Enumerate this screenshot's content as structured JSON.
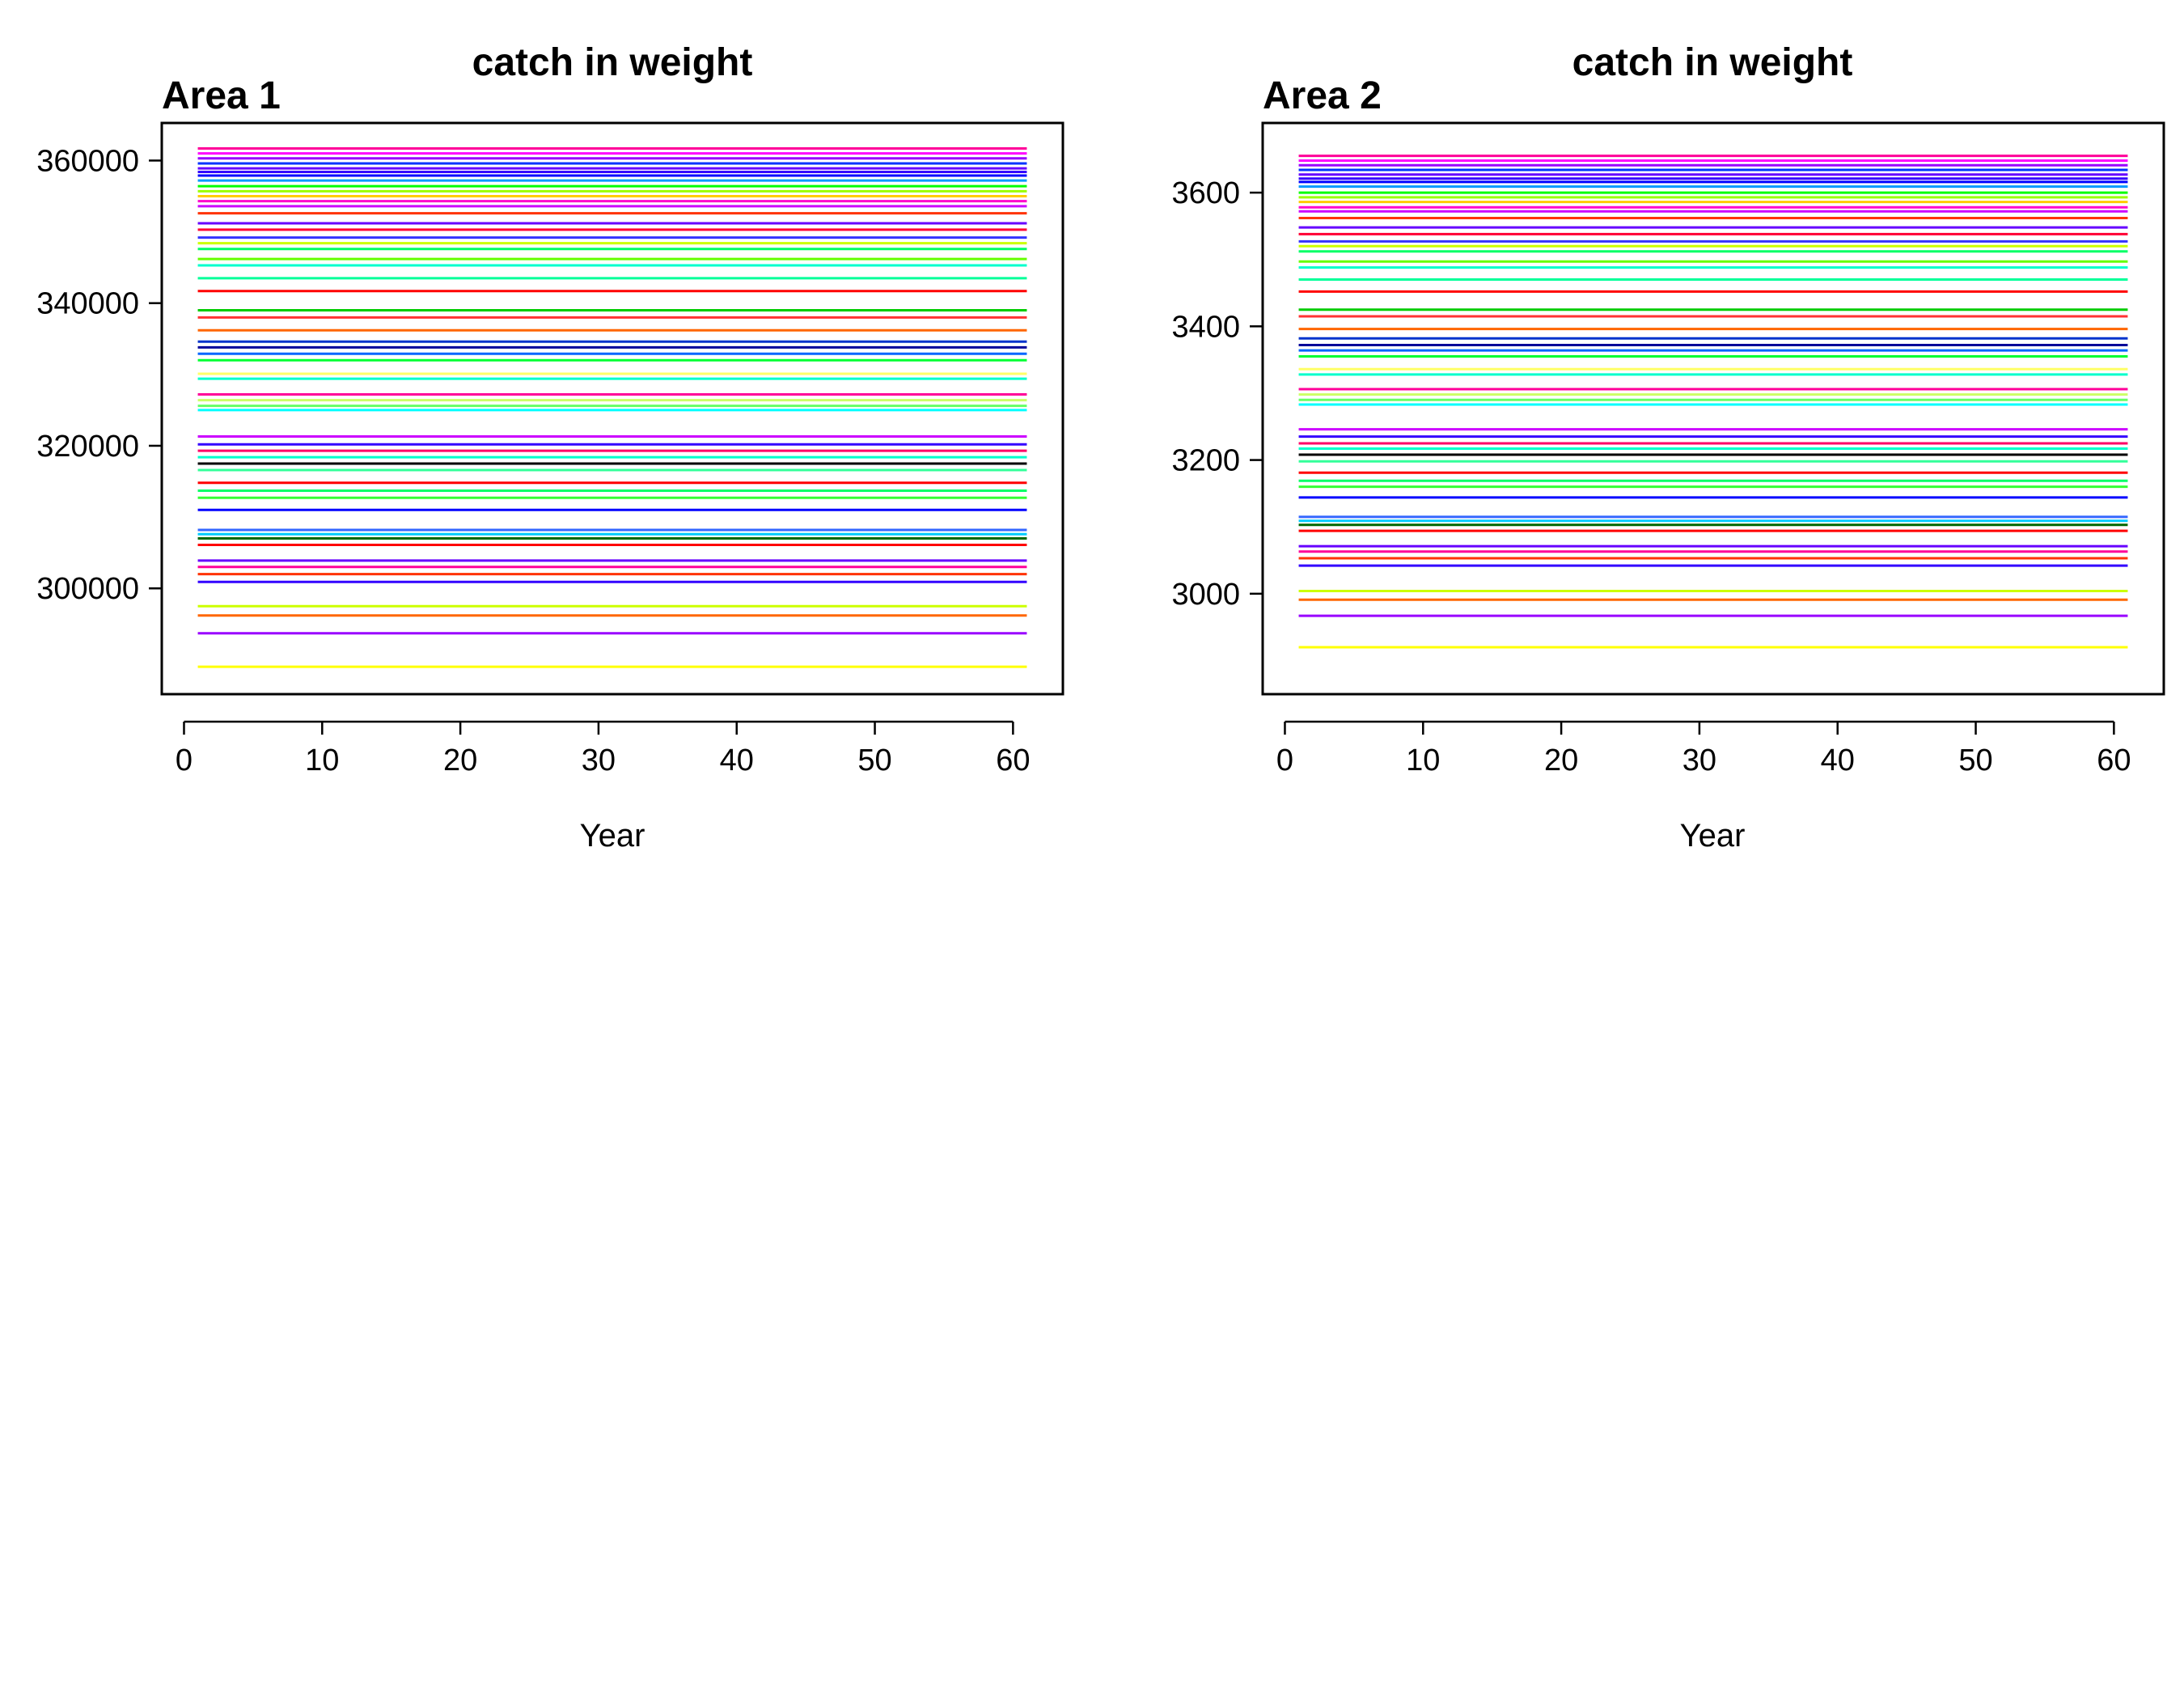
{
  "chart_data": [
    {
      "type": "line",
      "title": "catch in weight",
      "panel_label": "Area 1",
      "xlabel": "Year",
      "ylabel": "",
      "xlim": [
        1,
        61
      ],
      "ylim": [
        288000,
        363000
      ],
      "xticks": [
        0,
        10,
        20,
        30,
        40,
        50,
        60
      ],
      "yticks": [
        300000,
        320000,
        340000,
        360000
      ],
      "xtick_labels": [
        "0",
        "10",
        "20",
        "30",
        "40",
        "50",
        "60"
      ],
      "ytick_labels": [
        "300000",
        "320000",
        "340000",
        "360000"
      ],
      "grid": false,
      "legend": "none",
      "x_range": [
        1,
        61
      ],
      "series_levels": [
        289000,
        293700,
        296200,
        297500,
        300900,
        302000,
        303000,
        303900,
        306100,
        307000,
        307600,
        308200,
        311000,
        312700,
        313700,
        314800,
        316600,
        317500,
        318400,
        319300,
        320200,
        321300,
        325000,
        325600,
        326400,
        327200,
        329400,
        330100,
        332000,
        332900,
        333800,
        334600,
        336200,
        338000,
        339000,
        341700,
        343500,
        345300,
        346200,
        347600,
        348400,
        349200,
        350300,
        351200,
        352600,
        353600,
        354300,
        355000,
        355700,
        356400,
        357200,
        357900,
        358400,
        358900,
        359600,
        360300,
        361000,
        361700
      ],
      "series_colors": [
        "#ffff00",
        "#9900ff",
        "#ff6600",
        "#ccff00",
        "#3300ff",
        "#ff3300",
        "#ff0099",
        "#6600ff",
        "#ff0000",
        "#006600",
        "#00ccff",
        "#3366ff",
        "#0000ff",
        "#33ff33",
        "#00ff66",
        "#ff0000",
        "#33ff99",
        "#000000",
        "#00ffcc",
        "#ff0066",
        "#3300ff",
        "#cc00ff",
        "#00ffff",
        "#66ff66",
        "#ccff66",
        "#ff0099",
        "#00ffcc",
        "#ffff66",
        "#00ff33",
        "#0066ff",
        "#000099",
        "#0033cc",
        "#ff6600",
        "#ff3333",
        "#00cc00",
        "#ff0000",
        "#00ff99",
        "#00ffcc",
        "#66ff00",
        "#00ff66",
        "#ccff00",
        "#3333ff",
        "#ff0033",
        "#6600ff",
        "#ff3300",
        "#cc00ff",
        "#ff00cc",
        "#ffcc00",
        "#99ff00",
        "#00ff00",
        "#0099ff",
        "#0000ff",
        "#3300ff",
        "#6600ff",
        "#0033ff",
        "#9900ff",
        "#ff00ff",
        "#ff0099"
      ]
    },
    {
      "type": "line",
      "title": "catch in weight",
      "panel_label": "Area 2",
      "xlabel": "Year",
      "ylabel": "",
      "xlim": [
        1,
        61
      ],
      "ylim": [
        2880,
        3680
      ],
      "xticks": [
        0,
        10,
        20,
        30,
        40,
        50,
        60
      ],
      "yticks": [
        3000,
        3200,
        3400,
        3600
      ],
      "xtick_labels": [
        "0",
        "10",
        "20",
        "30",
        "40",
        "50",
        "60"
      ],
      "ytick_labels": [
        "3000",
        "3200",
        "3400",
        "3600"
      ],
      "grid": false,
      "legend": "none",
      "x_range": [
        1,
        61
      ],
      "series_levels": [
        2920,
        2967,
        2991,
        3004,
        3042,
        3053,
        3063,
        3071,
        3094,
        3103,
        3109,
        3115,
        3144,
        3160,
        3169,
        3181,
        3198,
        3208,
        3217,
        3225,
        3235,
        3246,
        3283,
        3290,
        3298,
        3306,
        3328,
        3336,
        3355,
        3364,
        3372,
        3382,
        3396,
        3415,
        3425,
        3452,
        3470,
        3488,
        3497,
        3512,
        3520,
        3527,
        3538,
        3548,
        3562,
        3572,
        3578,
        3586,
        3593,
        3600,
        3609,
        3616,
        3621,
        3627,
        3634,
        3641,
        3648,
        3655
      ],
      "series_colors": [
        "#ffff00",
        "#9900ff",
        "#ff6600",
        "#ccff00",
        "#3300ff",
        "#ff3300",
        "#ff0099",
        "#6600ff",
        "#ff0000",
        "#006600",
        "#00ccff",
        "#3366ff",
        "#0000ff",
        "#33ff33",
        "#00ff66",
        "#ff0000",
        "#33ff99",
        "#000000",
        "#00ffcc",
        "#ff0066",
        "#3300ff",
        "#cc00ff",
        "#00ffff",
        "#66ff66",
        "#ccff66",
        "#ff0099",
        "#00ffcc",
        "#ffff66",
        "#00ff33",
        "#0066ff",
        "#000099",
        "#0033cc",
        "#ff6600",
        "#ff3333",
        "#00cc00",
        "#ff0000",
        "#00ff99",
        "#00ffcc",
        "#66ff00",
        "#00ff66",
        "#ccff00",
        "#3333ff",
        "#ff0033",
        "#6600ff",
        "#ff3300",
        "#cc00ff",
        "#ff00cc",
        "#ffcc00",
        "#99ff00",
        "#00ff00",
        "#0099ff",
        "#0000ff",
        "#3300ff",
        "#6600ff",
        "#0033ff",
        "#9900ff",
        "#ff00ff",
        "#ff0099"
      ]
    }
  ]
}
